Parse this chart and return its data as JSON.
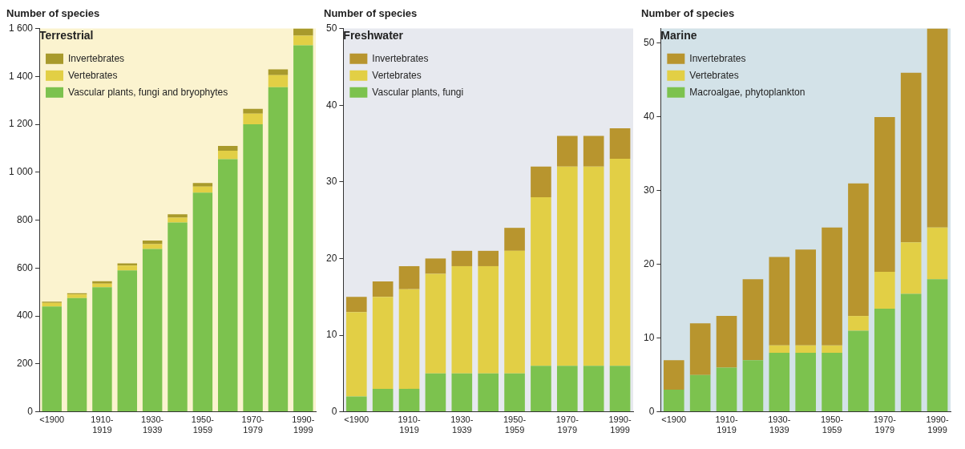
{
  "chart_data": [
    {
      "type": "bar",
      "legend_title": "Terrestrial",
      "ylabel": "Number of species",
      "stacked": true,
      "legend": "top left",
      "grid": false,
      "categories": [
        "<1900",
        null,
        "1910-1919",
        null,
        "1930-1939",
        null,
        "1950-1959",
        null,
        "1970-1979",
        null,
        "1990-1999"
      ],
      "ylim": [
        0,
        1600
      ],
      "yticks": [
        0,
        200,
        400,
        600,
        800,
        {
          "value": 1000,
          "label": "1 000"
        },
        {
          "value": 1200,
          "label": "1 200"
        },
        {
          "value": 1400,
          "label": "1 400"
        },
        {
          "value": 1600,
          "label": "1 600"
        }
      ],
      "series": [
        {
          "name": "Vascular plants, fungi and bryophytes",
          "color": "#7cc24e",
          "values": [
            440,
            475,
            520,
            590,
            680,
            790,
            915,
            1055,
            1200,
            1355,
            1530
          ]
        },
        {
          "name": "Vertebrates",
          "color": "#e2cf45",
          "values": [
            15,
            15,
            15,
            20,
            20,
            20,
            25,
            35,
            45,
            50,
            40
          ]
        },
        {
          "name": "Invertebrates",
          "color": "#a89a2c",
          "values": [
            5,
            5,
            10,
            10,
            15,
            15,
            15,
            20,
            20,
            25,
            30
          ]
        }
      ]
    },
    {
      "type": "bar",
      "legend_title": "Freshwater",
      "ylabel": "Number of species",
      "stacked": true,
      "legend": "top left",
      "grid": false,
      "categories": [
        "<1900",
        null,
        "1910-1919",
        null,
        "1930-1939",
        null,
        "1950-1959",
        null,
        "1970-1979",
        null,
        "1990-1999"
      ],
      "ylim": [
        0,
        50
      ],
      "yticks": [
        0,
        10,
        20,
        30,
        40,
        50
      ],
      "series": [
        {
          "name": "Vascular plants, fungi",
          "color": "#7cc24e",
          "values": [
            2,
            3,
            3,
            5,
            5,
            5,
            5,
            6,
            6,
            6,
            6
          ]
        },
        {
          "name": "Vertebrates",
          "color": "#e2cf45",
          "values": [
            11,
            12,
            13,
            13,
            14,
            14,
            16,
            22,
            26,
            26,
            27
          ]
        },
        {
          "name": "Invertebrates",
          "color": "#b8952e",
          "values": [
            2,
            2,
            3,
            2,
            2,
            2,
            3,
            4,
            4,
            4,
            4
          ]
        }
      ]
    },
    {
      "type": "bar",
      "legend_title": "Marine",
      "ylabel": "Number of species",
      "stacked": true,
      "legend": "top left",
      "grid": false,
      "categories": [
        "<1900",
        null,
        "1910-1919",
        null,
        "1930-1939",
        null,
        "1950-1959",
        null,
        "1970-1979",
        null,
        "1990-1999"
      ],
      "ylim": [
        0,
        52
      ],
      "yticks": [
        0,
        10,
        20,
        30,
        40,
        50
      ],
      "series": [
        {
          "name": "Macroalgae, phytoplankton",
          "color": "#7cc24e",
          "values": [
            3,
            5,
            6,
            7,
            8,
            8,
            8,
            11,
            14,
            16,
            18
          ]
        },
        {
          "name": "Vertebrates",
          "color": "#e2cf45",
          "values": [
            0,
            0,
            0,
            0,
            1,
            1,
            1,
            2,
            5,
            7,
            7
          ]
        },
        {
          "name": "Invertebrates",
          "color": "#b8952e",
          "values": [
            4,
            7,
            7,
            11,
            12,
            13,
            16,
            18,
            21,
            23,
            27
          ]
        }
      ]
    }
  ]
}
